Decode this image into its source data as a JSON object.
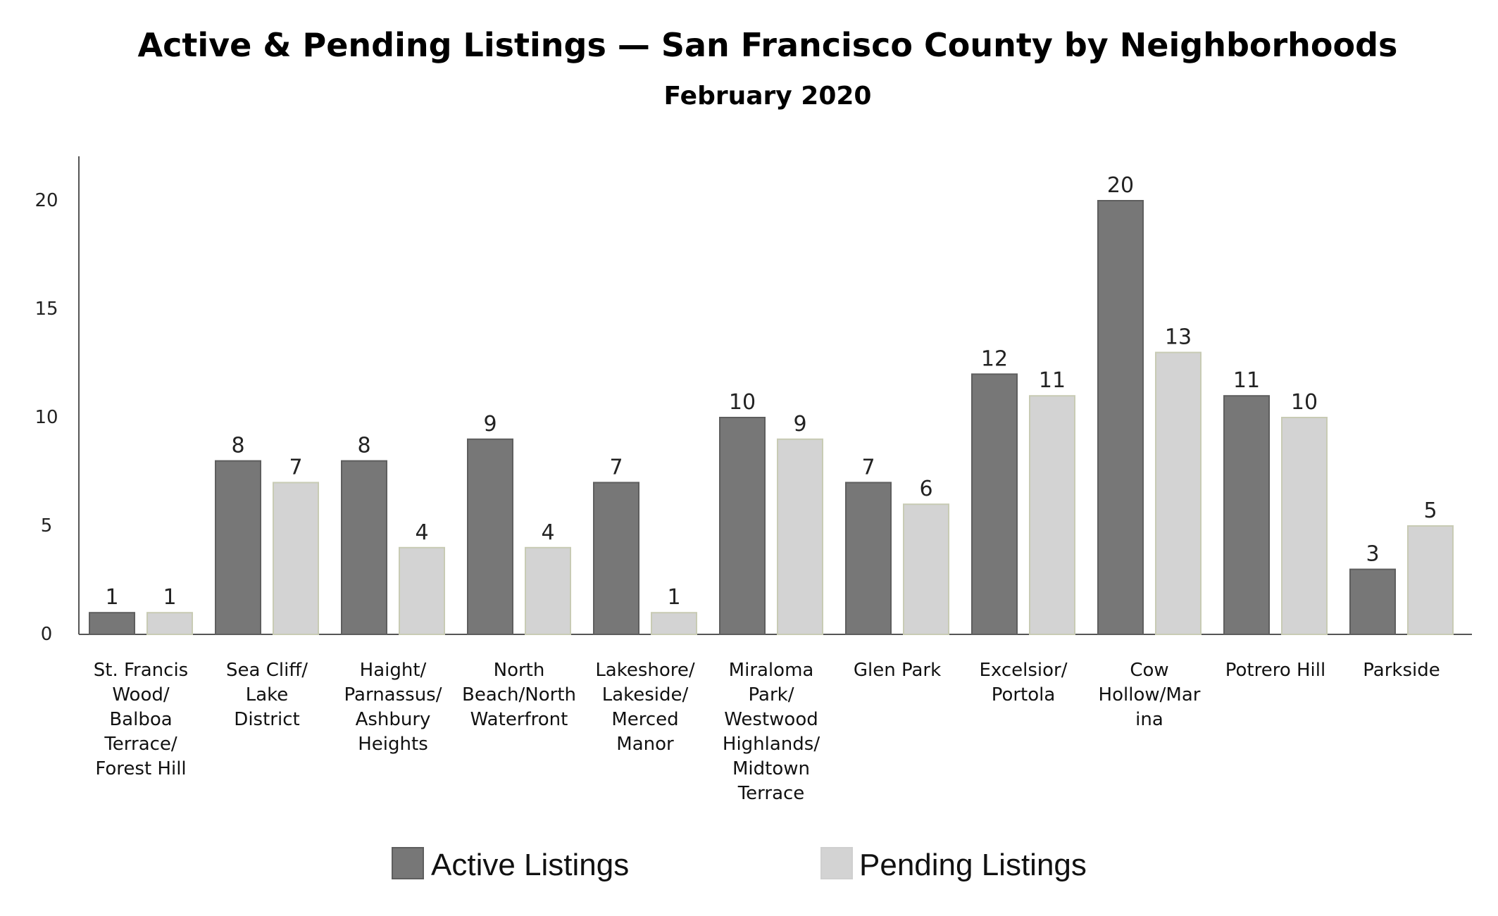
{
  "chart_data": {
    "type": "bar",
    "title": "Active & Pending Listings — San Francisco County by Neighborhoods",
    "subtitle": "February 2020",
    "xlabel": "",
    "ylabel": "",
    "ylim": [
      0,
      22
    ],
    "yticks": [
      0,
      5,
      10,
      15,
      20
    ],
    "grid": false,
    "legend": "bottom",
    "categories": [
      [
        "St. Francis",
        "Wood/",
        "Balboa",
        "Terrace/",
        "Forest Hill"
      ],
      [
        "Sea Cliff/",
        "Lake",
        "District"
      ],
      [
        "Haight/",
        "Parnassus/",
        "Ashbury",
        "Heights"
      ],
      [
        "North",
        "Beach/North",
        "Waterfront"
      ],
      [
        "Lakeshore/",
        "Lakeside/",
        "Merced",
        "Manor"
      ],
      [
        "Miraloma",
        "Park/",
        "Westwood",
        "Highlands/",
        "Midtown",
        "Terrace"
      ],
      [
        "Glen Park"
      ],
      [
        "Excelsior/",
        "Portola"
      ],
      [
        "Cow",
        "Hollow/Mar",
        "ina"
      ],
      [
        "Potrero Hill"
      ],
      [
        "Parkside"
      ]
    ],
    "series": [
      {
        "name": "Active Listings",
        "color": "#777777",
        "values": [
          1,
          8,
          8,
          9,
          7,
          10,
          7,
          12,
          20,
          11,
          3
        ]
      },
      {
        "name": "Pending Listings",
        "color": "#d3d3d3",
        "values": [
          1,
          7,
          4,
          4,
          1,
          9,
          6,
          11,
          13,
          10,
          5
        ]
      }
    ]
  }
}
